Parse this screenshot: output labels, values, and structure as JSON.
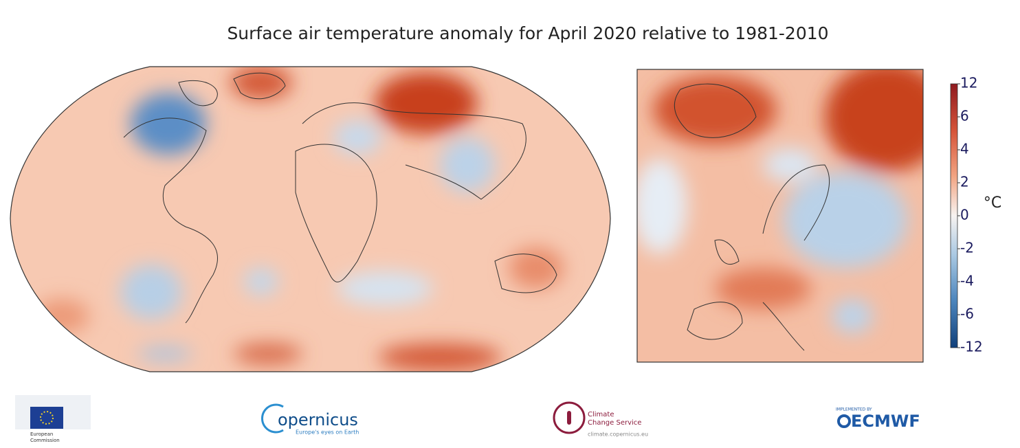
{
  "title": "Surface air temperature anomaly for April 2020 relative to 1981-2010",
  "colorbar": {
    "ticks": [
      12,
      6,
      4,
      2,
      0,
      -2,
      -4,
      -6,
      -12
    ],
    "unit": "°C"
  },
  "logos": {
    "european_commission": [
      "European",
      "Commission"
    ],
    "copernicus": {
      "name": "opernicus",
      "tagline": "Europe's eyes on Earth"
    },
    "climate_service": {
      "name": [
        "Climate",
        "Change Service"
      ],
      "url": "climate.copernicus.eu"
    },
    "ecmwf": {
      "note": "IMPLEMENTED BY",
      "name": "ECMWF"
    }
  }
}
